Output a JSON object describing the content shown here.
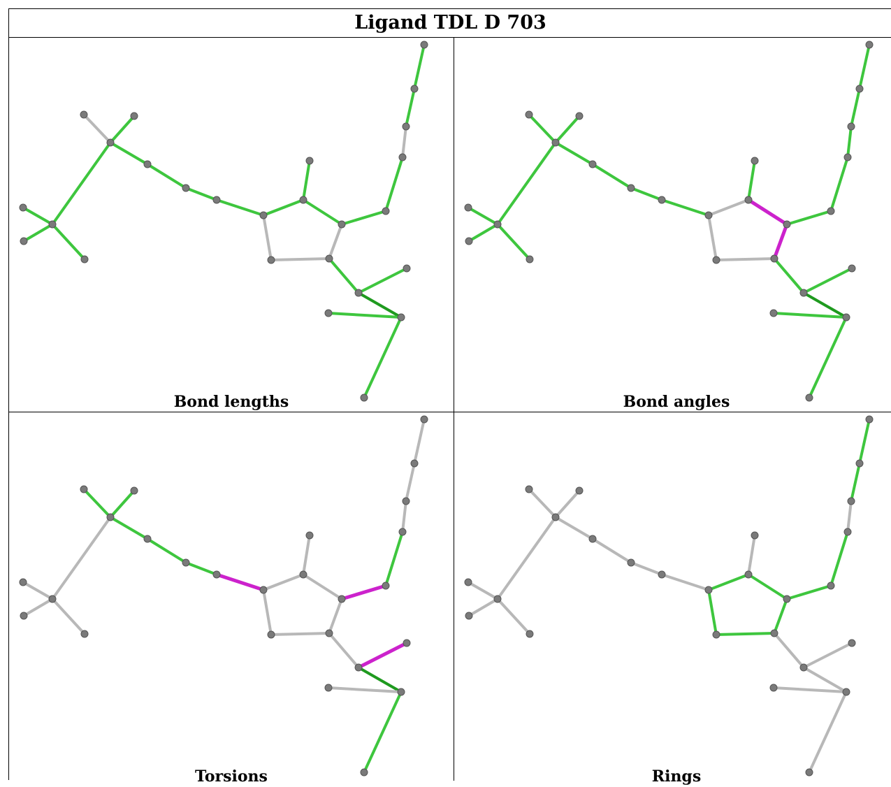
{
  "title": "Ligand TDL D 703",
  "colors": {
    "ok": "#3ec63e",
    "ok_dark": "#1f9a1f",
    "ok_light": "#58d458",
    "outlier": "#cc22cc",
    "neutral": "#b8b8b8",
    "atom": "#7a7a7a"
  },
  "panels": [
    {
      "caption": "Bond lengths",
      "bond_status": [
        "ok",
        "ok",
        "ok",
        "ok",
        "neutral",
        "ok",
        "ok",
        "ok",
        "ok",
        "ok",
        "ok",
        "ok",
        "neutral",
        "neutral",
        "neutral",
        "ok",
        "ok",
        "ok",
        "ok_dark",
        "ok",
        "ok",
        "ok",
        "ok",
        "neutral"
      ]
    },
    {
      "caption": "Bond angles",
      "bond_status": [
        "ok",
        "ok",
        "ok",
        "ok",
        "ok",
        "ok",
        "ok",
        "ok",
        "ok",
        "ok",
        "neutral",
        "outlier",
        "outlier",
        "neutral",
        "neutral",
        "ok",
        "ok",
        "ok",
        "ok_dark",
        "ok",
        "ok",
        "ok",
        "ok",
        "ok"
      ]
    },
    {
      "caption": "Torsions",
      "bond_status": [
        "neutral",
        "neutral",
        "neutral",
        "neutral",
        "ok",
        "ok",
        "ok",
        "ok",
        "ok",
        "outlier",
        "neutral",
        "neutral",
        "neutral",
        "neutral",
        "neutral",
        "neutral",
        "neutral",
        "outlier",
        "ok_dark",
        "neutral",
        "ok",
        "outlier",
        "ok",
        "neutral"
      ]
    },
    {
      "caption": "Rings",
      "bond_status": [
        "neutral",
        "neutral",
        "neutral",
        "neutral",
        "neutral",
        "neutral",
        "neutral",
        "neutral",
        "neutral",
        "neutral",
        "ok",
        "ok",
        "ok",
        "ok",
        "ok",
        "neutral",
        "neutral",
        "neutral",
        "neutral",
        "neutral",
        "neutral",
        "ok",
        "ok",
        "neutral"
      ]
    }
  ]
}
